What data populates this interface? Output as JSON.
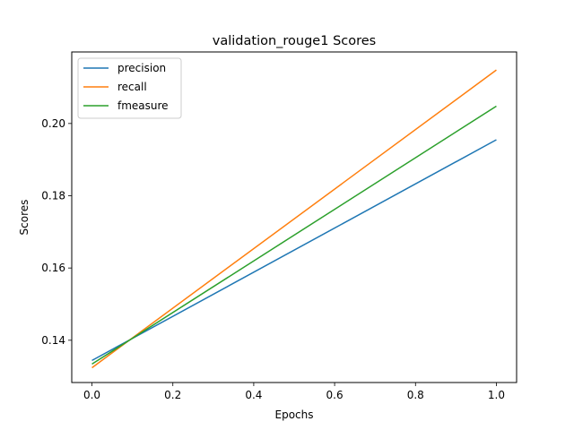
{
  "chart_data": {
    "type": "line",
    "title": "validation_rouge1 Scores",
    "xlabel": "Epochs",
    "ylabel": "Scores",
    "xlim": [
      -0.05,
      1.05
    ],
    "ylim": [
      0.1283,
      0.2198
    ],
    "x_ticks": [
      0.0,
      0.2,
      0.4,
      0.6,
      0.8,
      1.0
    ],
    "x_tick_labels": [
      "0.0",
      "0.2",
      "0.4",
      "0.6",
      "0.8",
      "1.0"
    ],
    "y_ticks": [
      0.14,
      0.16,
      0.18,
      0.2
    ],
    "y_tick_labels": [
      "0.14",
      "0.16",
      "0.18",
      "0.20"
    ],
    "grid": false,
    "legend_position": "upper-left",
    "x": [
      0,
      1
    ],
    "series": [
      {
        "name": "precision",
        "color": "#1f77b4",
        "values": [
          0.1344,
          0.1955
        ]
      },
      {
        "name": "recall",
        "color": "#ff7f0e",
        "values": [
          0.1324,
          0.2148
        ]
      },
      {
        "name": "fmeasure",
        "color": "#2ca02c",
        "values": [
          0.1334,
          0.2048
        ]
      }
    ]
  }
}
